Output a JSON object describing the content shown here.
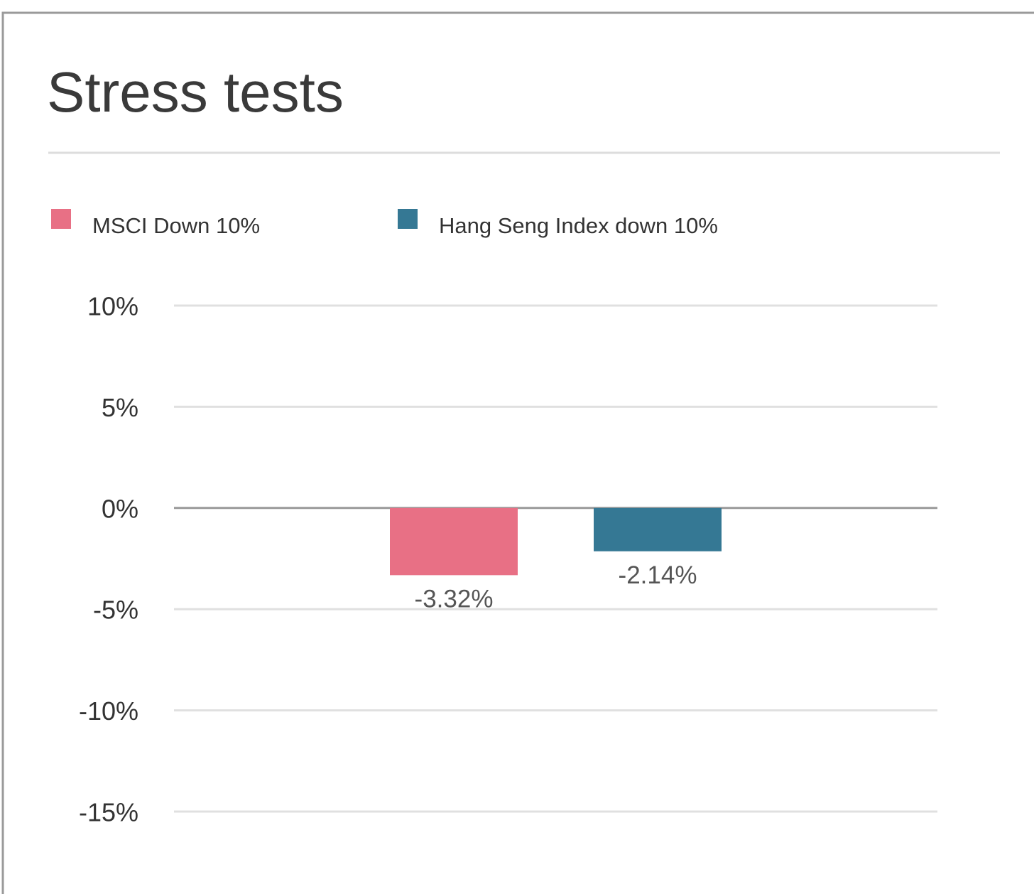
{
  "chart_data": {
    "type": "bar",
    "title": "Stress tests",
    "categories": [
      null
    ],
    "series": [
      {
        "name": "MSCI Down 10%",
        "color": "#e87085",
        "values": [
          -3.32
        ],
        "value_labels": [
          "-3.32%"
        ]
      },
      {
        "name": "Hang Seng Index down 10%",
        "color": "#357894",
        "values": [
          -2.14
        ],
        "value_labels": [
          "-2.14%"
        ]
      }
    ],
    "ylim": [
      -15,
      10
    ],
    "yticks": [
      {
        "value": 10,
        "label": "10%"
      },
      {
        "value": 5,
        "label": "5%"
      },
      {
        "value": 0,
        "label": "0%"
      },
      {
        "value": -5,
        "label": "-5%"
      },
      {
        "value": -10,
        "label": "-10%"
      },
      {
        "value": -15,
        "label": "-15%"
      }
    ],
    "grid": true
  }
}
